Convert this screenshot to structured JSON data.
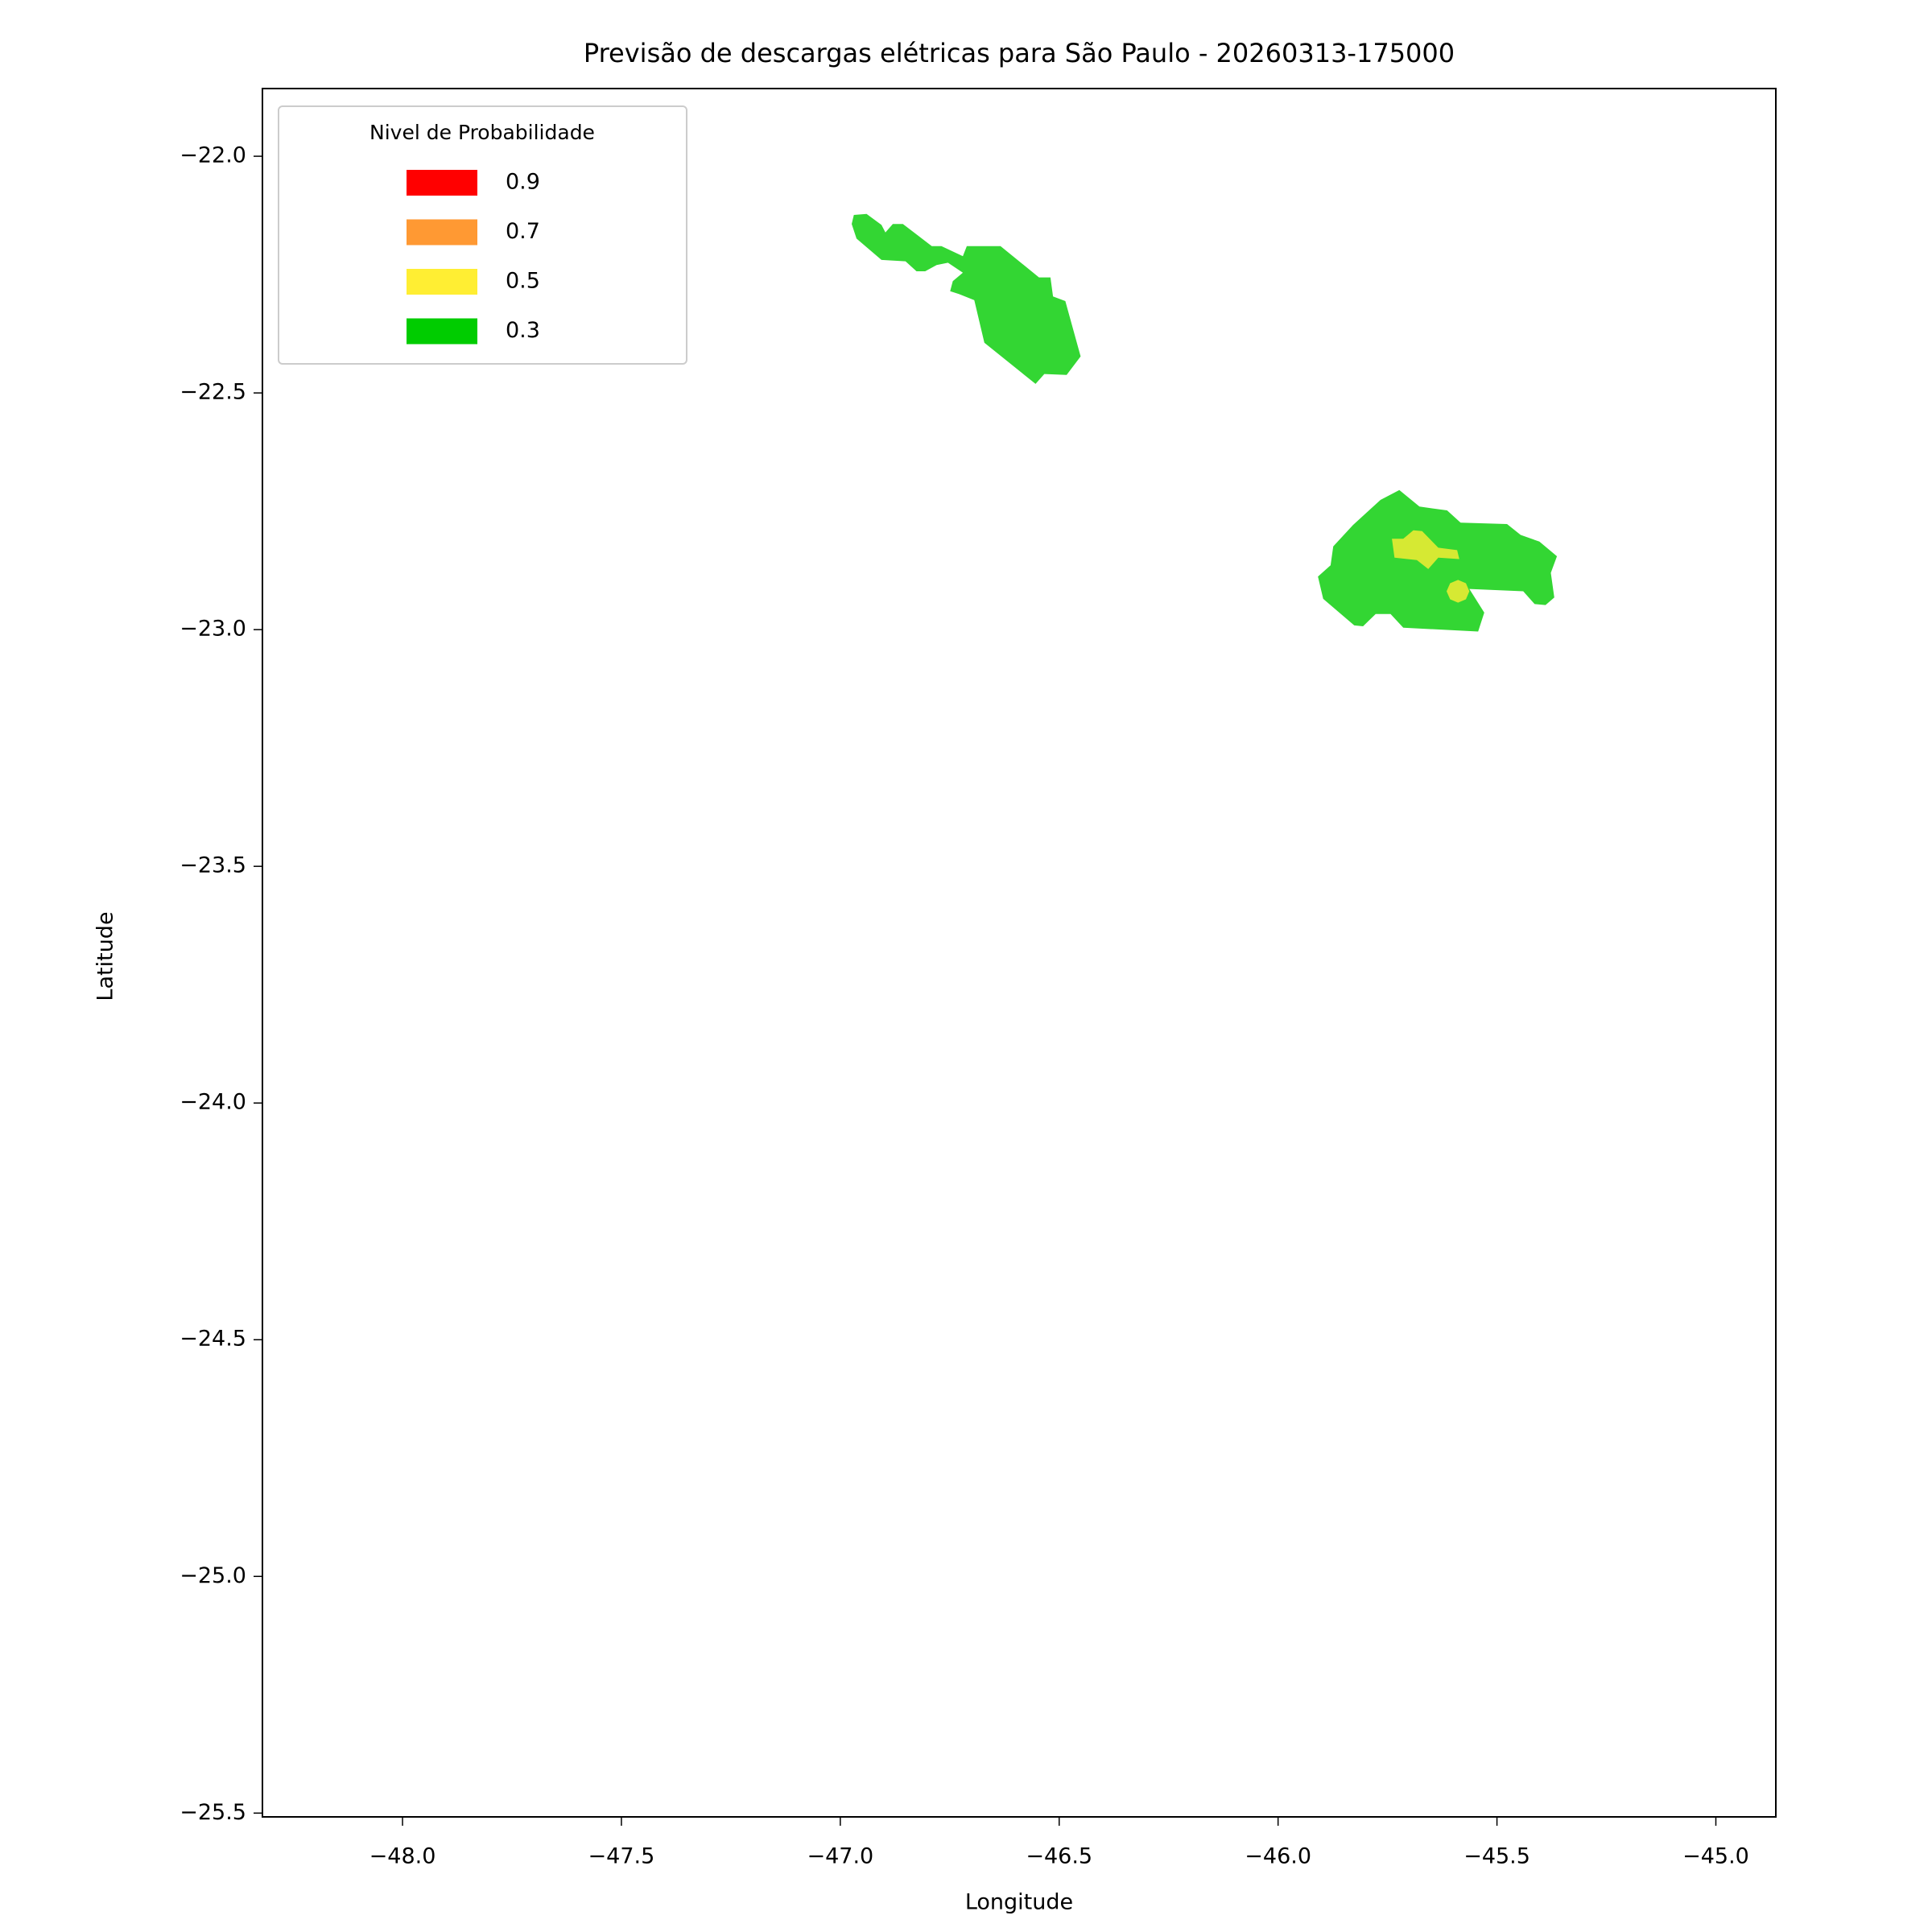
{
  "chart_data": {
    "type": "map",
    "title": "Previsão de descargas elétricas para São Paulo - 20260313-175000",
    "x_label": "Longitude",
    "y_label": "Latitude",
    "xlim": [
      -48.32,
      -44.863
    ],
    "ylim": [
      -25.508,
      -21.857
    ],
    "xticks": [
      {
        "value": -48.0,
        "label": "−48.0"
      },
      {
        "value": -47.5,
        "label": "−47.5"
      },
      {
        "value": -47.0,
        "label": "−47.0"
      },
      {
        "value": -46.5,
        "label": "−46.5"
      },
      {
        "value": -46.0,
        "label": "−46.0"
      },
      {
        "value": -45.5,
        "label": "−45.5"
      },
      {
        "value": -45.0,
        "label": "−45.0"
      }
    ],
    "yticks": [
      {
        "value": -22.0,
        "label": "−22.0"
      },
      {
        "value": -22.5,
        "label": "−22.5"
      },
      {
        "value": -23.0,
        "label": "−23.0"
      },
      {
        "value": -23.5,
        "label": "−23.5"
      },
      {
        "value": -24.0,
        "label": "−24.0"
      },
      {
        "value": -24.5,
        "label": "−24.5"
      },
      {
        "value": -25.0,
        "label": "−25.0"
      },
      {
        "value": -25.5,
        "label": "−25.5"
      }
    ],
    "alpha": 0.8,
    "legend_title": "Nivel de Probabilidade",
    "legend_position": "upper left",
    "levels": [
      {
        "label": "0.9",
        "color": "#ff0000",
        "polygons": []
      },
      {
        "label": "0.7",
        "color": "#ff9933",
        "polygons": []
      },
      {
        "label": "0.5",
        "color": "#ffee33",
        "polygons": [
          {
            "x": [
              -45.74,
              -45.714,
              -45.691,
              -45.671,
              -45.634,
              -45.591,
              -45.586,
              -45.634,
              -45.657,
              -45.683,
              -45.734
            ],
            "y": [
              -22.808,
              -22.808,
              -22.79,
              -22.792,
              -22.827,
              -22.832,
              -22.851,
              -22.848,
              -22.872,
              -22.853,
              -22.848
            ]
          },
          {
            "x": [
              -45.563,
              -45.571,
              -45.589,
              -45.607,
              -45.615,
              -45.607,
              -45.589,
              -45.571
            ],
            "y": [
              -22.919,
              -22.902,
              -22.895,
              -22.902,
              -22.919,
              -22.936,
              -22.943,
              -22.936
            ]
          }
        ]
      },
      {
        "label": "0.3",
        "color": "#00cc00",
        "polygons": [
          {
            "x": [
              -46.969,
              -46.94,
              -46.906,
              -46.897,
              -46.88,
              -46.857,
              -46.791,
              -46.769,
              -46.72,
              -46.711,
              -46.634,
              -46.546,
              -46.52,
              -46.514,
              -46.486,
              -46.451,
              -46.483,
              -46.534,
              -46.554,
              -46.671,
              -46.694,
              -46.729,
              -46.749,
              -46.743,
              -46.72,
              -46.754,
              -46.78,
              -46.806,
              -46.826,
              -46.851,
              -46.906,
              -46.963,
              -46.974
            ],
            "y": [
              -22.124,
              -22.122,
              -22.145,
              -22.161,
              -22.143,
              -22.143,
              -22.19,
              -22.19,
              -22.211,
              -22.19,
              -22.19,
              -22.256,
              -22.256,
              -22.296,
              -22.306,
              -22.423,
              -22.462,
              -22.46,
              -22.481,
              -22.394,
              -22.304,
              -22.291,
              -22.285,
              -22.264,
              -22.246,
              -22.225,
              -22.23,
              -22.243,
              -22.243,
              -22.222,
              -22.219,
              -22.174,
              -22.143
            ]
          },
          {
            "x": [
              -45.766,
              -45.723,
              -45.677,
              -45.614,
              -45.583,
              -45.477,
              -45.446,
              -45.403,
              -45.363,
              -45.377,
              -45.369,
              -45.389,
              -45.414,
              -45.44,
              -45.563,
              -45.529,
              -45.543,
              -45.714,
              -45.743,
              -45.777,
              -45.806,
              -45.826,
              -45.897,
              -45.909,
              -45.88,
              -45.874,
              -45.829
            ],
            "y": [
              -22.726,
              -22.705,
              -22.74,
              -22.748,
              -22.774,
              -22.777,
              -22.8,
              -22.814,
              -22.845,
              -22.88,
              -22.932,
              -22.948,
              -22.946,
              -22.919,
              -22.914,
              -22.964,
              -23.004,
              -22.996,
              -22.967,
              -22.967,
              -22.993,
              -22.991,
              -22.935,
              -22.888,
              -22.864,
              -22.824,
              -22.779
            ]
          }
        ]
      }
    ]
  }
}
